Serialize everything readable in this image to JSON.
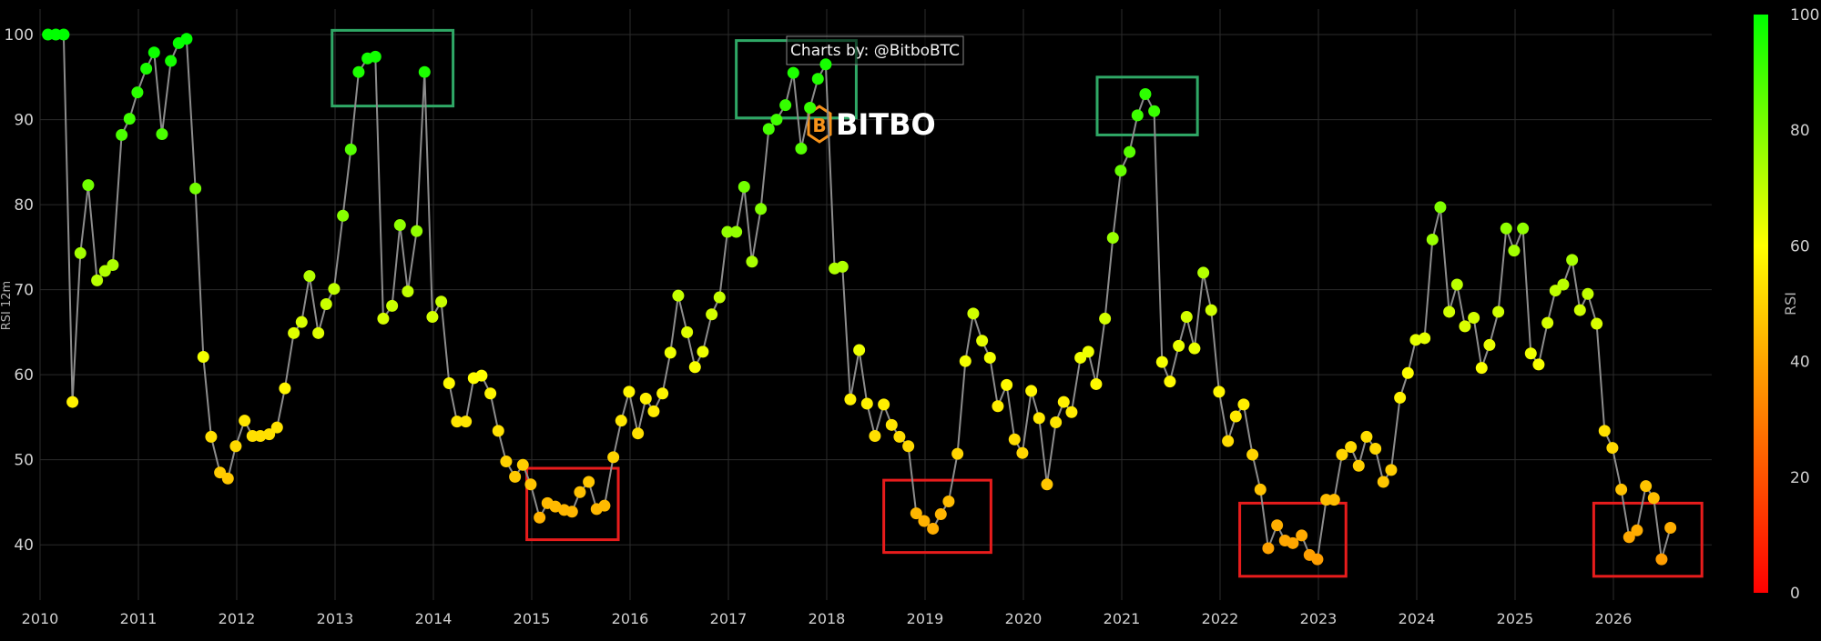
{
  "watermark": {
    "credit": "Charts by: @BitboBTC",
    "brand": "BITBO"
  },
  "chart_data": {
    "type": "scatter",
    "ylabel": "RSI 12m",
    "colorbar": {
      "label": "RSI",
      "ticks": [
        0,
        20,
        40,
        60,
        80,
        100
      ],
      "colors": [
        "#ff0000",
        "#ffa500",
        "#ffff00",
        "#00ff00"
      ]
    },
    "ylim": [
      33.5,
      103
    ],
    "yticks": [
      40,
      50,
      60,
      70,
      80,
      90,
      100
    ],
    "xlim": [
      2010.0,
      2027.0
    ],
    "xticks": [
      "2010",
      "2011",
      "2012",
      "2013",
      "2014",
      "2015",
      "2016",
      "2017",
      "2018",
      "2019",
      "2020",
      "2021",
      "2022",
      "2023",
      "2024",
      "2025",
      "2026"
    ],
    "grid": true,
    "highlight_boxes": [
      {
        "type": "high",
        "x0": 2012.97,
        "x1": 2014.2,
        "y0": 91.6,
        "y1": 100.5
      },
      {
        "type": "high",
        "x0": 2017.08,
        "x1": 2018.3,
        "y0": 90.2,
        "y1": 99.3
      },
      {
        "type": "high",
        "x0": 2020.75,
        "x1": 2021.77,
        "y0": 88.2,
        "y1": 95.0
      },
      {
        "type": "low",
        "x0": 2014.95,
        "x1": 2015.88,
        "y0": 40.6,
        "y1": 49.0
      },
      {
        "type": "low",
        "x0": 2018.58,
        "x1": 2019.67,
        "y0": 39.1,
        "y1": 47.6
      },
      {
        "type": "low",
        "x0": 2022.2,
        "x1": 2023.28,
        "y0": 36.3,
        "y1": 44.9
      },
      {
        "type": "low",
        "x0": 2025.8,
        "x1": 2026.9,
        "y0": 36.3,
        "y1": 44.9
      }
    ],
    "series": [
      {
        "x": [
          2010.08,
          2010.16,
          2010.24,
          2010.33,
          2010.41,
          2010.49,
          2010.58,
          2010.66,
          2010.74,
          2010.83,
          2010.91,
          2010.99,
          2011.08,
          2011.16,
          2011.24,
          2011.33,
          2011.41,
          2011.49,
          2011.58,
          2011.66,
          2011.74,
          2011.83,
          2011.91,
          2011.99,
          2012.08,
          2012.16,
          2012.24,
          2012.33,
          2012.41,
          2012.49,
          2012.58,
          2012.66,
          2012.74,
          2012.83,
          2012.91,
          2012.99,
          2013.08,
          2013.16,
          2013.24,
          2013.33,
          2013.41,
          2013.49,
          2013.58,
          2013.66,
          2013.74,
          2013.83,
          2013.91,
          2013.99,
          2014.08,
          2014.16,
          2014.24,
          2014.33,
          2014.41,
          2014.49,
          2014.58,
          2014.66,
          2014.74,
          2014.83,
          2014.91,
          2014.99,
          2015.08,
          2015.16,
          2015.24,
          2015.33,
          2015.41,
          2015.49,
          2015.58,
          2015.66,
          2015.74,
          2015.83,
          2015.91,
          2015.99,
          2016.08,
          2016.16,
          2016.24,
          2016.33,
          2016.41,
          2016.49,
          2016.58,
          2016.66,
          2016.74,
          2016.83,
          2016.91,
          2016.99,
          2017.08,
          2017.16,
          2017.24,
          2017.33,
          2017.41,
          2017.49,
          2017.58,
          2017.66,
          2017.74,
          2017.83,
          2017.91,
          2017.99,
          2018.08,
          2018.16,
          2018.24,
          2018.33,
          2018.41,
          2018.49,
          2018.58,
          2018.66,
          2018.74,
          2018.83,
          2018.91,
          2018.99,
          2019.08,
          2019.16,
          2019.24,
          2019.33,
          2019.41,
          2019.49,
          2019.58,
          2019.66,
          2019.74,
          2019.83,
          2019.91,
          2019.99,
          2020.08,
          2020.16,
          2020.24,
          2020.33,
          2020.41,
          2020.49,
          2020.58,
          2020.66,
          2020.74,
          2020.83,
          2020.91,
          2020.99,
          2021.08,
          2021.16,
          2021.24,
          2021.33,
          2021.41,
          2021.49,
          2021.58,
          2021.66,
          2021.74,
          2021.83,
          2021.91,
          2021.99,
          2022.08,
          2022.16,
          2022.24,
          2022.33,
          2022.41,
          2022.49,
          2022.58,
          2022.66,
          2022.74,
          2022.83,
          2022.91,
          2022.99,
          2023.08,
          2023.16,
          2023.24,
          2023.33,
          2023.41,
          2023.49,
          2023.58,
          2023.66,
          2023.74,
          2023.83,
          2023.91,
          2023.99,
          2024.08,
          2024.16,
          2024.24,
          2024.33,
          2024.41,
          2024.49,
          2024.58,
          2024.66,
          2024.74,
          2024.83,
          2024.91,
          2024.99,
          2025.08,
          2025.16,
          2025.24,
          2025.33,
          2025.41,
          2025.49,
          2025.58,
          2025.66,
          2025.74,
          2025.83,
          2025.91,
          2025.99,
          2026.08,
          2026.16,
          2026.24,
          2026.33,
          2026.41,
          2026.49,
          2026.58
        ],
        "y": [
          100,
          100,
          100,
          56.8,
          74.3,
          82.3,
          71.1,
          72.2,
          72.9,
          88.2,
          90.1,
          93.2,
          96.0,
          97.9,
          88.3,
          96.9,
          99.0,
          99.5,
          81.9,
          62.1,
          52.7,
          48.5,
          47.8,
          51.6,
          54.6,
          52.8,
          52.8,
          53.0,
          53.8,
          58.4,
          64.9,
          66.2,
          71.6,
          64.9,
          68.3,
          70.1,
          78.7,
          86.5,
          95.6,
          97.2,
          97.4,
          66.6,
          68.1,
          77.6,
          69.8,
          76.9,
          95.6,
          66.8,
          68.6,
          59.0,
          54.5,
          54.5,
          59.6,
          59.9,
          57.8,
          53.4,
          49.8,
          48.0,
          49.4,
          47.1,
          43.2,
          44.9,
          44.5,
          44.1,
          43.9,
          46.2,
          47.4,
          44.2,
          44.6,
          50.3,
          54.6,
          58.0,
          53.1,
          57.2,
          55.7,
          57.8,
          62.6,
          69.3,
          65.0,
          60.9,
          62.7,
          67.1,
          69.1,
          76.8,
          76.8,
          82.1,
          73.3,
          79.5,
          88.9,
          90.0,
          91.7,
          95.5,
          86.6,
          91.4,
          94.8,
          96.5,
          72.5,
          72.7,
          57.1,
          62.9,
          56.6,
          52.8,
          56.5,
          54.1,
          52.7,
          51.6,
          43.7,
          42.8,
          41.9,
          43.6,
          45.1,
          50.7,
          61.6,
          67.2,
          64.0,
          62.0,
          56.3,
          58.8,
          52.4,
          50.8,
          58.1,
          54.9,
          47.1,
          54.4,
          56.8,
          55.6,
          62.0,
          62.7,
          58.9,
          66.6,
          76.1,
          84.0,
          86.2,
          90.5,
          93.0,
          91.0,
          61.5,
          59.2,
          63.4,
          66.8,
          63.1,
          72.0,
          67.6,
          58.0,
          52.2,
          55.1,
          56.5,
          50.6,
          46.5,
          39.6,
          42.3,
          40.5,
          40.2,
          41.1,
          38.8,
          38.3,
          45.3,
          45.3,
          50.6,
          51.5,
          49.3,
          52.7,
          51.3,
          47.4,
          48.8,
          57.3,
          60.2,
          64.1,
          64.3,
          75.9,
          79.7,
          67.4,
          70.6,
          65.7,
          66.7,
          60.8,
          63.5,
          67.4,
          77.2,
          74.6,
          77.2,
          62.5,
          61.2,
          66.1,
          69.9,
          70.6,
          73.5,
          67.6,
          69.5,
          66.0,
          53.4,
          51.4,
          46.5,
          40.9,
          41.7,
          46.9,
          45.5,
          38.3,
          42.0
        ]
      }
    ]
  }
}
